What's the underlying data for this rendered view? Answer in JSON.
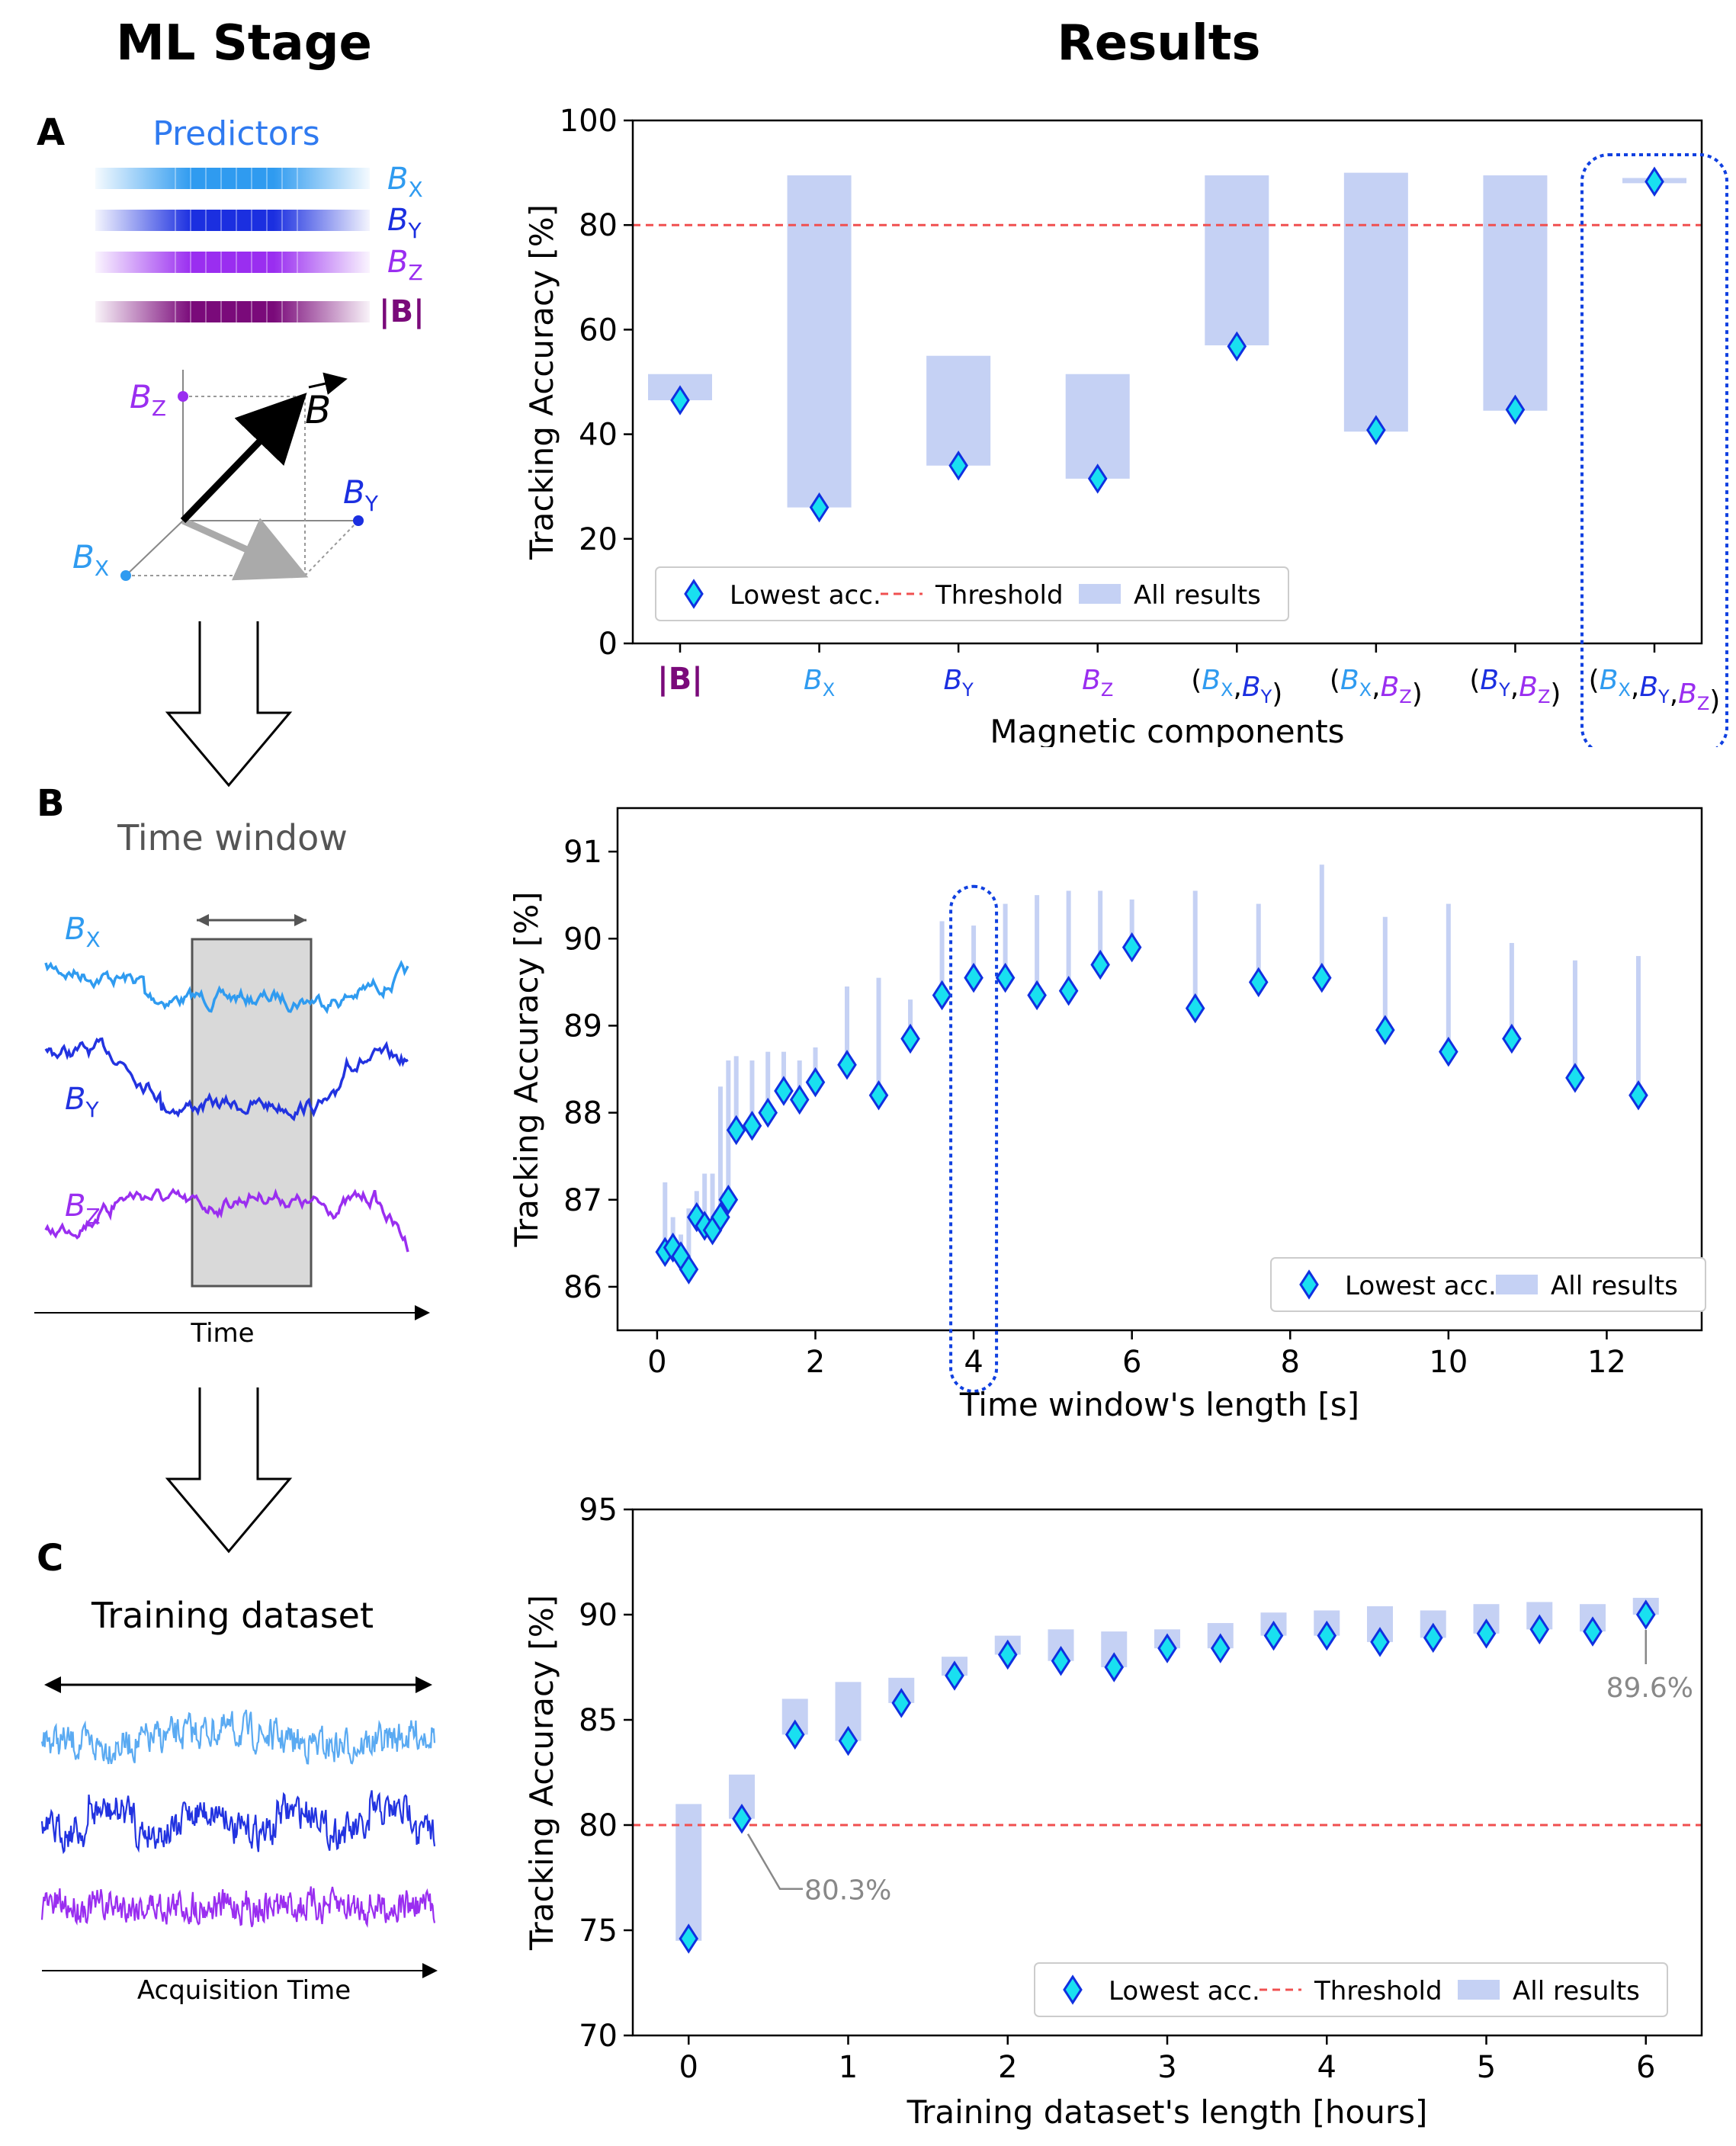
{
  "headers": {
    "left": "ML Stage",
    "right": "Results"
  },
  "left": {
    "panel_a": {
      "letter": "A",
      "predictors_title": "Predictors",
      "bars": [
        {
          "label": "B",
          "sub": "X",
          "color": "#2f9bf0"
        },
        {
          "label": "B",
          "sub": "Y",
          "color": "#1b2fe0"
        },
        {
          "label": "B",
          "sub": "Z",
          "color": "#9a2ef0"
        },
        {
          "label": "|B|",
          "sub": "",
          "color": "#7a0a7a"
        }
      ],
      "vector": {
        "bz": "B",
        "bz_sub": "Z",
        "by": "B",
        "by_sub": "Y",
        "bx": "B",
        "bx_sub": "X",
        "b": "B"
      }
    },
    "panel_b": {
      "letter": "B",
      "title": "Time window",
      "traces": [
        {
          "label": "B",
          "sub": "X",
          "color": "#2f9bf0"
        },
        {
          "label": "B",
          "sub": "Y",
          "color": "#2233e0"
        },
        {
          "label": "B",
          "sub": "Z",
          "color": "#9a2ef0"
        }
      ],
      "axis_label": "Time"
    },
    "panel_c": {
      "letter": "C",
      "title": "Training dataset",
      "axis_label": "Acquisition Time",
      "colors": [
        "#5aaaf2",
        "#2233e0",
        "#9a2ef0"
      ]
    }
  },
  "colors": {
    "bar": "#c5d1f4",
    "marker_fill": "#19e0f0",
    "marker_edge": "#1030e0",
    "threshold": "#f05050",
    "highlight": "#1040e0",
    "bx": "#2f9bf0",
    "by": "#1b2fe0",
    "bz": "#9a2ef0",
    "bmag": "#7a0a7a"
  },
  "chart_data": [
    {
      "type": "bar",
      "title": "",
      "xlabel": "Magnetic components",
      "ylabel": "Tracking Accuracy [%]",
      "ylim": [
        0,
        100
      ],
      "yticks": [
        "0",
        "20",
        "40",
        "60",
        "80",
        "100"
      ],
      "categories": [
        "|B|",
        "(B_X)",
        "(B_Y)",
        "(B_Z)",
        "(B_X,B_Y)",
        "(B_X,B_Z)",
        "(B_Y,B_Z)",
        "(B_X,B_Y,B_Z)"
      ],
      "cat_labels": [
        [
          {
            "t": "|",
            "c": "bmag",
            "bold": true
          },
          {
            "t": "B",
            "c": "bmag",
            "bold": true
          },
          {
            "t": "|",
            "c": "bmag",
            "bold": true
          }
        ],
        [
          {
            "t": "B",
            "c": "bx",
            "it": true,
            "sub": "X"
          }
        ],
        [
          {
            "t": "B",
            "c": "by",
            "it": true,
            "sub": "Y"
          }
        ],
        [
          {
            "t": "B",
            "c": "bz",
            "it": true,
            "sub": "Z"
          }
        ],
        [
          {
            "t": "(",
            "c": "k"
          },
          {
            "t": "B",
            "c": "bx",
            "it": true,
            "sub": "X"
          },
          {
            "t": ",",
            "c": "k"
          },
          {
            "t": "B",
            "c": "by",
            "it": true,
            "sub": "Y"
          },
          {
            "t": ")",
            "c": "k"
          }
        ],
        [
          {
            "t": "(",
            "c": "k"
          },
          {
            "t": "B",
            "c": "bx",
            "it": true,
            "sub": "X"
          },
          {
            "t": ",",
            "c": "k"
          },
          {
            "t": "B",
            "c": "bz",
            "it": true,
            "sub": "Z"
          },
          {
            "t": ")",
            "c": "k"
          }
        ],
        [
          {
            "t": "(",
            "c": "k"
          },
          {
            "t": "B",
            "c": "by",
            "it": true,
            "sub": "Y"
          },
          {
            "t": ",",
            "c": "k"
          },
          {
            "t": "B",
            "c": "bz",
            "it": true,
            "sub": "Z"
          },
          {
            "t": ")",
            "c": "k"
          }
        ],
        [
          {
            "t": "(",
            "c": "k"
          },
          {
            "t": "B",
            "c": "bx",
            "it": true,
            "sub": "X"
          },
          {
            "t": ",",
            "c": "k"
          },
          {
            "t": "B",
            "c": "by",
            "it": true,
            "sub": "Y"
          },
          {
            "t": ",",
            "c": "k"
          },
          {
            "t": "B",
            "c": "bz",
            "it": true,
            "sub": "Z"
          },
          {
            "t": ")",
            "c": "k"
          }
        ]
      ],
      "bar_low": [
        46.5,
        26,
        34,
        31.5,
        57,
        40.5,
        44.5,
        88
      ],
      "bar_high": [
        51.5,
        89.5,
        55,
        51.5,
        89.5,
        90,
        89.5,
        89
      ],
      "lowest_acc": [
        46.5,
        26,
        34,
        31.5,
        56.8,
        40.8,
        44.7,
        88.3
      ],
      "threshold": 80,
      "highlight_category": 7,
      "legend": [
        "Lowest acc.",
        "Threshold",
        "All results"
      ],
      "legend_loc": "lower-left"
    },
    {
      "type": "scatter",
      "xlabel": "Time window's length [s]",
      "ylabel": "Tracking Accuracy [%]",
      "xlim": [
        -0.5,
        13.2
      ],
      "ylim": [
        85.5,
        91.5
      ],
      "xticks": [
        0,
        2,
        4,
        6,
        8,
        10,
        12
      ],
      "xtick_labels": [
        "0",
        "2",
        "4",
        "6",
        "8",
        "10",
        "12"
      ],
      "yticks": [
        86,
        87,
        88,
        89,
        90,
        91
      ],
      "ytick_labels": [
        "86",
        "87",
        "88",
        "89",
        "90",
        "91"
      ],
      "x": [
        0.1,
        0.2,
        0.3,
        0.4,
        0.5,
        0.6,
        0.7,
        0.8,
        0.9,
        1.0,
        1.2,
        1.4,
        1.6,
        1.8,
        2.0,
        2.4,
        2.8,
        3.2,
        3.6,
        4.0,
        4.4,
        4.8,
        5.2,
        5.6,
        6.0,
        6.8,
        7.6,
        8.4,
        9.2,
        10.0,
        10.8,
        11.6,
        12.4
      ],
      "lowest_acc": [
        86.4,
        86.45,
        86.35,
        86.2,
        86.8,
        86.7,
        86.65,
        86.8,
        87.0,
        87.8,
        87.85,
        88.0,
        88.25,
        88.15,
        88.35,
        88.55,
        88.2,
        88.85,
        89.35,
        89.55,
        89.55,
        89.35,
        89.4,
        89.7,
        89.9,
        89.2,
        89.5,
        89.55,
        88.95,
        88.7,
        88.85,
        88.4,
        88.2
      ],
      "max_acc": [
        87.2,
        86.8,
        86.6,
        86.9,
        87.1,
        87.3,
        87.3,
        88.3,
        88.6,
        88.65,
        88.6,
        88.7,
        88.7,
        88.6,
        88.75,
        89.45,
        89.55,
        89.3,
        90.2,
        90.15,
        90.4,
        90.5,
        90.55,
        90.55,
        90.45,
        90.55,
        90.4,
        90.85,
        90.25,
        90.4,
        89.95,
        89.75,
        89.8
      ],
      "highlight_x": 4.0,
      "legend": [
        "Lowest acc.",
        "All results"
      ],
      "legend_loc": "lower-right"
    },
    {
      "type": "bar",
      "xlabel": "Training dataset's length [hours]",
      "ylabel": "Tracking Accuracy [%]",
      "xlim": [
        -0.35,
        6.35
      ],
      "ylim": [
        70,
        95
      ],
      "xticks": [
        0,
        1,
        2,
        3,
        4,
        5,
        6
      ],
      "xtick_labels": [
        "0",
        "1",
        "2",
        "3",
        "4",
        "5",
        "6"
      ],
      "yticks": [
        70,
        75,
        80,
        85,
        90,
        95
      ],
      "ytick_labels": [
        "70",
        "75",
        "80",
        "85",
        "90",
        "95"
      ],
      "x": [
        0.0,
        0.33,
        0.67,
        1.0,
        1.33,
        1.67,
        2.0,
        2.33,
        2.67,
        3.0,
        3.33,
        3.67,
        4.0,
        4.33,
        4.67,
        5.0,
        5.33,
        5.67,
        6.0
      ],
      "x_pos": [
        0.0,
        0.33,
        0.65,
        0.97,
        1.28,
        1.6,
        1.92,
        2.24,
        2.55,
        2.87,
        3.19,
        3.5,
        3.82,
        4.14,
        4.45,
        4.77,
        5.09,
        5.4,
        5.72
      ],
      "bar_low": [
        74.5,
        80.3,
        84.3,
        84.0,
        85.8,
        87.1,
        88.1,
        87.8,
        87.5,
        88.4,
        88.4,
        89.0,
        89.0,
        88.7,
        88.9,
        89.1,
        89.3,
        89.2,
        90.0
      ],
      "bar_high": [
        81.0,
        82.4,
        86.0,
        86.8,
        87.0,
        88.0,
        89.0,
        89.3,
        89.2,
        89.3,
        89.6,
        90.1,
        90.2,
        90.4,
        90.2,
        90.5,
        90.6,
        90.5,
        90.8
      ],
      "lowest_acc": [
        74.6,
        80.3,
        84.3,
        84.0,
        85.8,
        87.1,
        88.1,
        87.8,
        87.5,
        88.4,
        88.4,
        89.0,
        89.0,
        88.7,
        88.9,
        89.1,
        89.3,
        89.2,
        90.0
      ],
      "threshold": 80,
      "annotations": [
        {
          "text": "80.3%",
          "index": 1
        },
        {
          "text": "89.6%",
          "index": 19
        }
      ],
      "legend": [
        "Lowest acc.",
        "Threshold",
        "All results"
      ],
      "legend_loc": "lower-right"
    }
  ]
}
